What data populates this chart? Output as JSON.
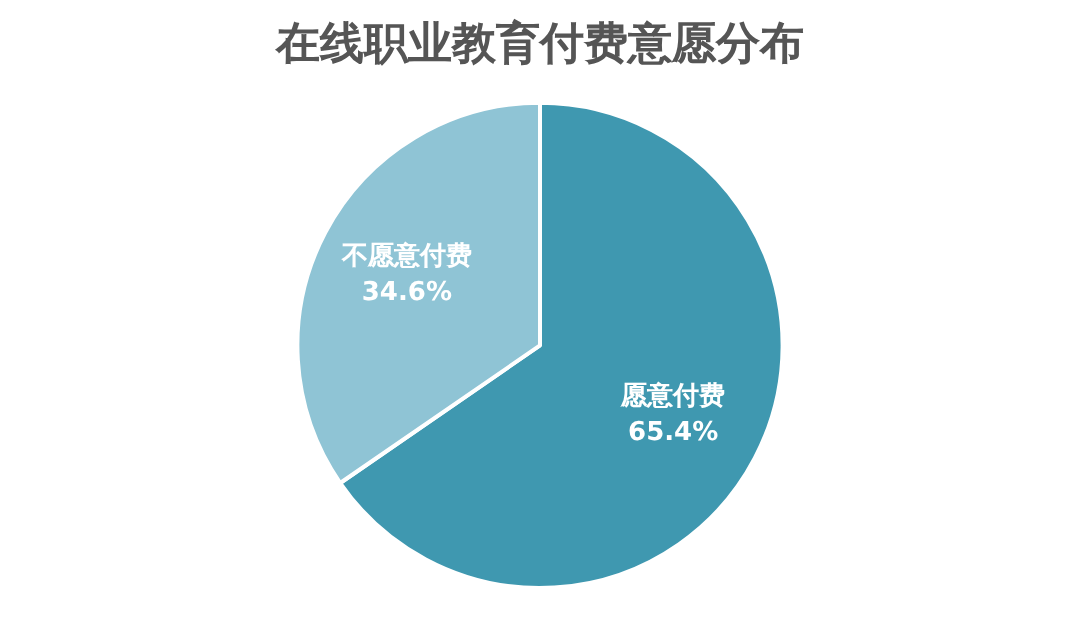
{
  "chart_data": {
    "type": "pie",
    "title": "在线职业教育付费意愿分布",
    "categories": [
      "愿意付费",
      "不愿意付费"
    ],
    "values": [
      65.4,
      34.6
    ],
    "colors": [
      "#3f98b0",
      "#8fc4d5"
    ],
    "value_labels": [
      "65.4%",
      "34.6%"
    ]
  }
}
